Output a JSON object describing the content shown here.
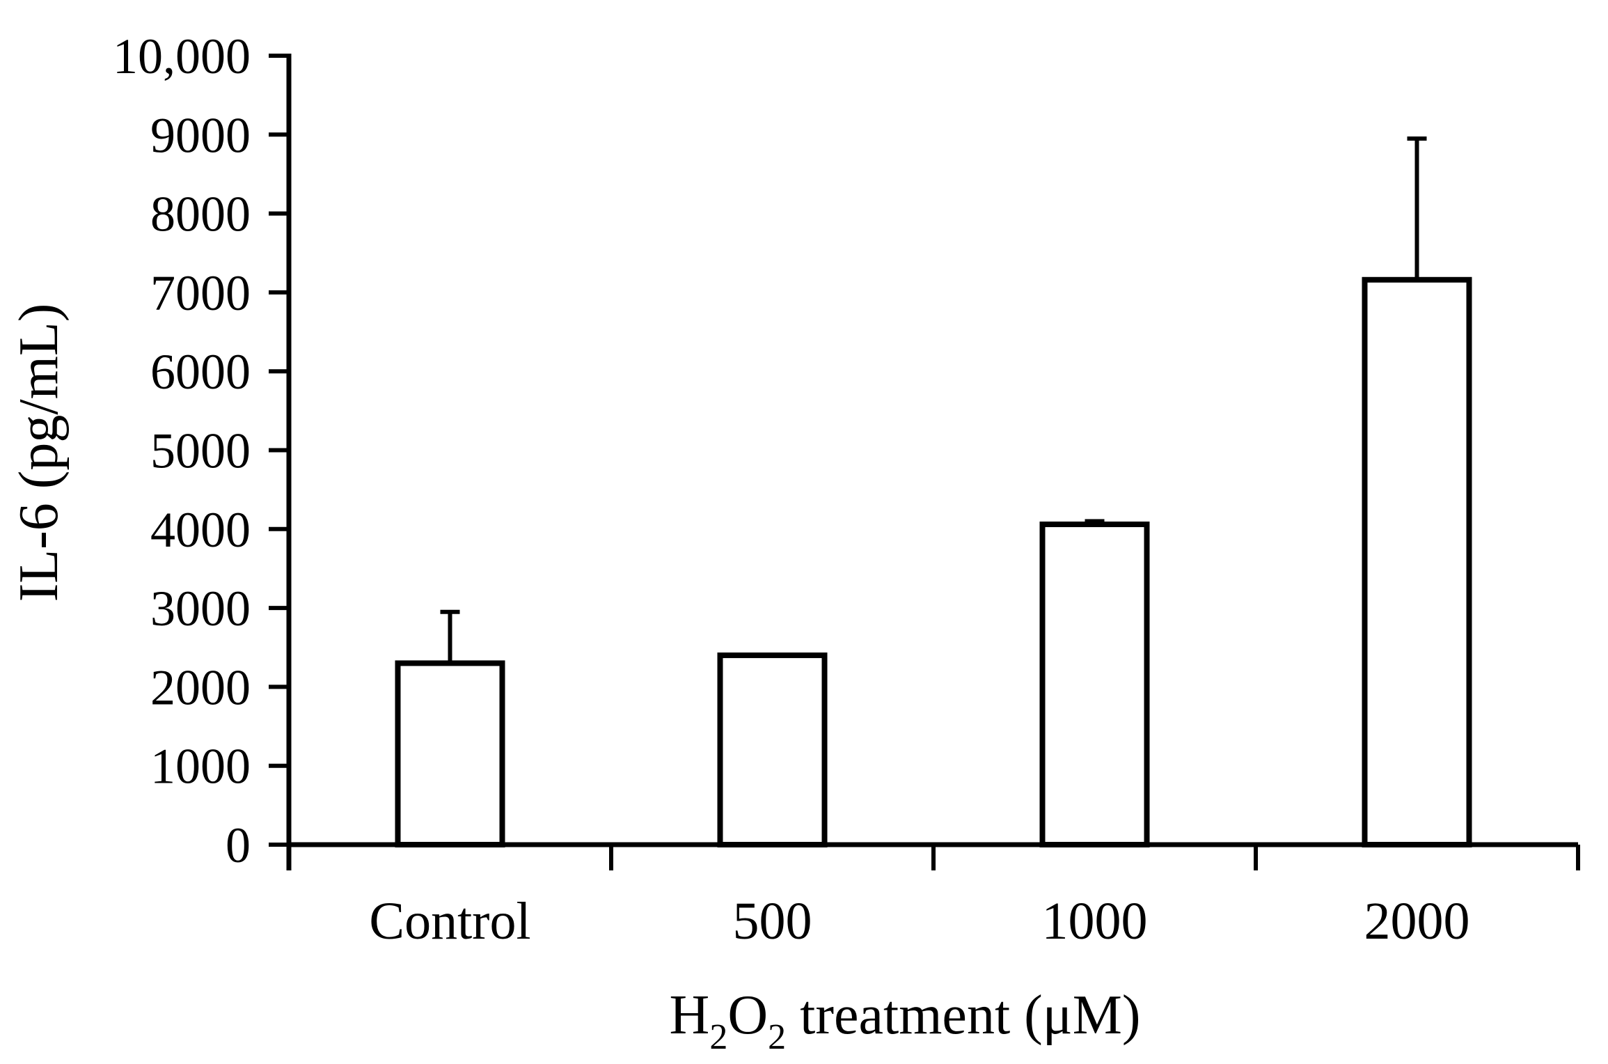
{
  "chart_data": {
    "type": "bar",
    "title": "",
    "ylabel": "IL-6 (pg/mL)",
    "xlabel": "H₂O₂ treatment (μM)",
    "xlabel_parts": [
      {
        "t": "H"
      },
      {
        "t": "2",
        "sub": true
      },
      {
        "t": "O"
      },
      {
        "t": "2",
        "sub": true
      },
      {
        "t": " treatment (μM)"
      }
    ],
    "categories": [
      "Control",
      "500",
      "1000",
      "2000"
    ],
    "values": [
      2300,
      2400,
      4060,
      7160
    ],
    "errors_upper": [
      650,
      0,
      40,
      1790
    ],
    "ylim": [
      0,
      10000
    ],
    "yticks": [
      {
        "value": 0,
        "label": "0"
      },
      {
        "value": 1000,
        "label": "1000"
      },
      {
        "value": 2000,
        "label": "2000"
      },
      {
        "value": 3000,
        "label": "3000"
      },
      {
        "value": 4000,
        "label": "4000"
      },
      {
        "value": 5000,
        "label": "5000"
      },
      {
        "value": 6000,
        "label": "6000"
      },
      {
        "value": 7000,
        "label": "7000"
      },
      {
        "value": 8000,
        "label": "8000"
      },
      {
        "value": 9000,
        "label": "9000"
      },
      {
        "value": 10000,
        "label": "10,000"
      }
    ],
    "grid": false,
    "legend": false,
    "background": "#ffffff",
    "bar_fill": "#ffffff",
    "bar_stroke": "#000000",
    "axis_color": "#000000",
    "text_color": "#000000"
  }
}
